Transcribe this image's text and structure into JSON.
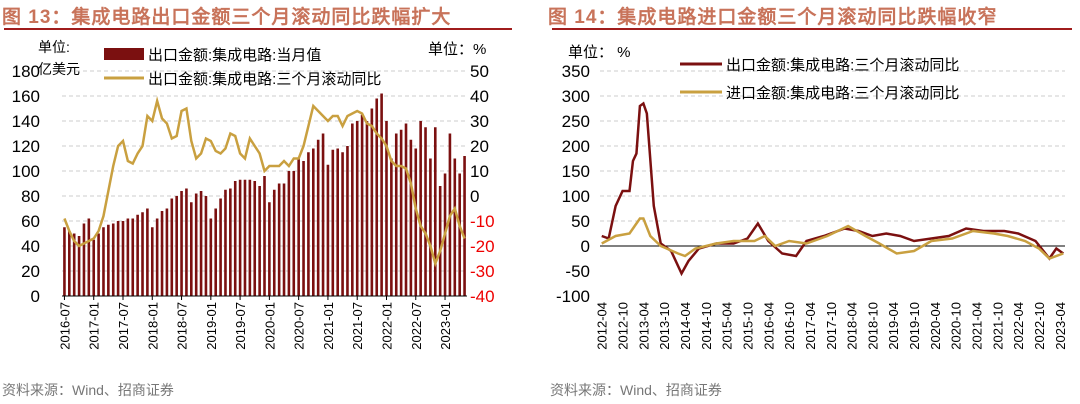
{
  "chart_data": [
    {
      "type": "bar+line",
      "title": "图 13：集成电路出口金额三个月滚动同比跌幅扩大",
      "left_unit": [
        "单位:",
        "亿美元"
      ],
      "right_unit": "单位：%",
      "ylim_left": [
        0,
        180
      ],
      "ylim_right": [
        -40,
        50
      ],
      "left_ticks": [
        "0",
        "20",
        "40",
        "60",
        "80",
        "100",
        "120",
        "140",
        "160",
        "180"
      ],
      "right_ticks": [
        "-40",
        "-30",
        "-20",
        "-10",
        "0",
        "10",
        "20",
        "30",
        "40",
        "50"
      ],
      "x_start": "2016-07",
      "x_ticks": [
        "2016-07",
        "2017-01",
        "2017-07",
        "2018-01",
        "2018-07",
        "2019-01",
        "2019-07",
        "2020-01",
        "2020-07",
        "2021-01",
        "2021-07",
        "2022-01",
        "2022-07",
        "2023-01"
      ],
      "series": [
        {
          "name": "出口金额:集成电路:当月值",
          "kind": "bar",
          "color": "#7b1010",
          "values": [
            55,
            52,
            50,
            48,
            58,
            62,
            45,
            50,
            55,
            57,
            58,
            60,
            60,
            62,
            62,
            65,
            67,
            70,
            55,
            62,
            68,
            70,
            78,
            80,
            84,
            86,
            75,
            82,
            84,
            80,
            62,
            70,
            78,
            85,
            86,
            92,
            93,
            93,
            93,
            92,
            88,
            96,
            75,
            85,
            90,
            90,
            100,
            100,
            110,
            108,
            115,
            118,
            125,
            130,
            105,
            117,
            118,
            115,
            120,
            138,
            140,
            145,
            140,
            150,
            158,
            162,
            140,
            110,
            130,
            133,
            138,
            125,
            118,
            140,
            135,
            110,
            135,
            88,
            98,
            130,
            110,
            98,
            112
          ]
        },
        {
          "name": "出口金额:集成电路:三个月滚动同比",
          "kind": "line",
          "axis": "right",
          "color": "#c9a040",
          "values": [
            -9,
            -14,
            -18,
            -20,
            -19,
            -18,
            -17,
            -14,
            -8,
            2,
            12,
            20,
            22,
            14,
            13,
            17,
            20,
            32,
            30,
            38,
            31,
            29,
            23,
            24,
            34,
            35,
            22,
            15,
            17,
            23,
            22,
            18,
            17,
            19,
            25,
            24,
            17,
            15,
            23,
            20,
            17,
            10,
            12,
            12,
            12,
            14,
            12,
            15,
            15,
            20,
            28,
            36,
            34,
            32,
            30,
            32,
            32,
            28,
            32,
            33,
            34,
            33,
            29,
            28,
            25,
            23,
            20,
            14,
            12,
            12,
            11,
            5,
            -5,
            -12,
            -15,
            -20,
            -27,
            -22,
            -15,
            -8,
            -5,
            -12,
            -17
          ]
        }
      ]
    },
    {
      "type": "line",
      "title": "图 14：集成电路进口金额三个月滚动同比跌幅收窄",
      "unit": "单位：%",
      "ylim": [
        -100,
        350
      ],
      "y_ticks": [
        "-100",
        "-50",
        "0",
        "50",
        "100",
        "150",
        "200",
        "250",
        "300",
        "350"
      ],
      "x_start": "2012-04",
      "x_ticks": [
        "2012-04",
        "2012-10",
        "2013-04",
        "2013-10",
        "2014-04",
        "2014-10",
        "2015-04",
        "2015-10",
        "2016-04",
        "2016-10",
        "2017-04",
        "2017-10",
        "2018-04",
        "2018-10",
        "2019-04",
        "2019-10",
        "2020-04",
        "2020-10",
        "2021-04",
        "2021-10",
        "2022-04",
        "2022-10",
        "2023-04"
      ],
      "series": [
        {
          "name": "出口金额:集成电路:三个月滚动同比",
          "color": "#7b1010",
          "points": [
            [
              "2012-04",
              20
            ],
            [
              "2012-06",
              15
            ],
            [
              "2012-08",
              80
            ],
            [
              "2012-10",
              110
            ],
            [
              "2012-12",
              110
            ],
            [
              "2013-01",
              170
            ],
            [
              "2013-02",
              185
            ],
            [
              "2013-03",
              280
            ],
            [
              "2013-04",
              285
            ],
            [
              "2013-05",
              265
            ],
            [
              "2013-07",
              80
            ],
            [
              "2013-09",
              5
            ],
            [
              "2013-12",
              -10
            ],
            [
              "2014-03",
              -55
            ],
            [
              "2014-05",
              -30
            ],
            [
              "2014-08",
              -5
            ],
            [
              "2015-01",
              5
            ],
            [
              "2015-06",
              5
            ],
            [
              "2015-10",
              15
            ],
            [
              "2016-01",
              45
            ],
            [
              "2016-04",
              10
            ],
            [
              "2016-08",
              -15
            ],
            [
              "2016-12",
              -20
            ],
            [
              "2017-03",
              10
            ],
            [
              "2017-08",
              20
            ],
            [
              "2018-02",
              35
            ],
            [
              "2018-06",
              30
            ],
            [
              "2018-10",
              20
            ],
            [
              "2019-02",
              25
            ],
            [
              "2019-06",
              20
            ],
            [
              "2019-10",
              10
            ],
            [
              "2020-03",
              15
            ],
            [
              "2020-08",
              20
            ],
            [
              "2021-01",
              35
            ],
            [
              "2021-06",
              30
            ],
            [
              "2021-12",
              30
            ],
            [
              "2022-04",
              25
            ],
            [
              "2022-09",
              10
            ],
            [
              "2023-01",
              -25
            ],
            [
              "2023-03",
              -5
            ],
            [
              "2023-05",
              -15
            ]
          ]
        },
        {
          "name": "进口金额:集成电路:三个月滚动同比",
          "color": "#c9a040",
          "points": [
            [
              "2012-04",
              5
            ],
            [
              "2012-08",
              20
            ],
            [
              "2012-12",
              25
            ],
            [
              "2013-03",
              55
            ],
            [
              "2013-04",
              55
            ],
            [
              "2013-06",
              20
            ],
            [
              "2013-09",
              0
            ],
            [
              "2014-02",
              -15
            ],
            [
              "2014-04",
              -20
            ],
            [
              "2014-07",
              -5
            ],
            [
              "2015-01",
              5
            ],
            [
              "2015-06",
              10
            ],
            [
              "2015-12",
              10
            ],
            [
              "2016-03",
              20
            ],
            [
              "2016-06",
              0
            ],
            [
              "2016-10",
              10
            ],
            [
              "2017-03",
              5
            ],
            [
              "2017-09",
              20
            ],
            [
              "2018-03",
              40
            ],
            [
              "2018-08",
              20
            ],
            [
              "2018-12",
              5
            ],
            [
              "2019-05",
              -15
            ],
            [
              "2019-10",
              -10
            ],
            [
              "2020-03",
              10
            ],
            [
              "2020-09",
              15
            ],
            [
              "2021-03",
              30
            ],
            [
              "2021-09",
              25
            ],
            [
              "2022-01",
              20
            ],
            [
              "2022-06",
              10
            ],
            [
              "2022-10",
              -5
            ],
            [
              "2023-01",
              -25
            ],
            [
              "2023-05",
              -15
            ]
          ]
        }
      ]
    }
  ],
  "titles": [
    "图 13：集成电路出口金额三个月滚动同比跌幅扩大",
    "图 14：集成电路进口金额三个月滚动同比跌幅收窄"
  ],
  "sources": [
    "资料来源：Wind、招商证券",
    "资料来源：Wind、招商证券"
  ],
  "chart1_units": {
    "left1": "单位:",
    "left2": "亿美元",
    "right": "单位：  %"
  },
  "chart2_unit": "单位：  %"
}
